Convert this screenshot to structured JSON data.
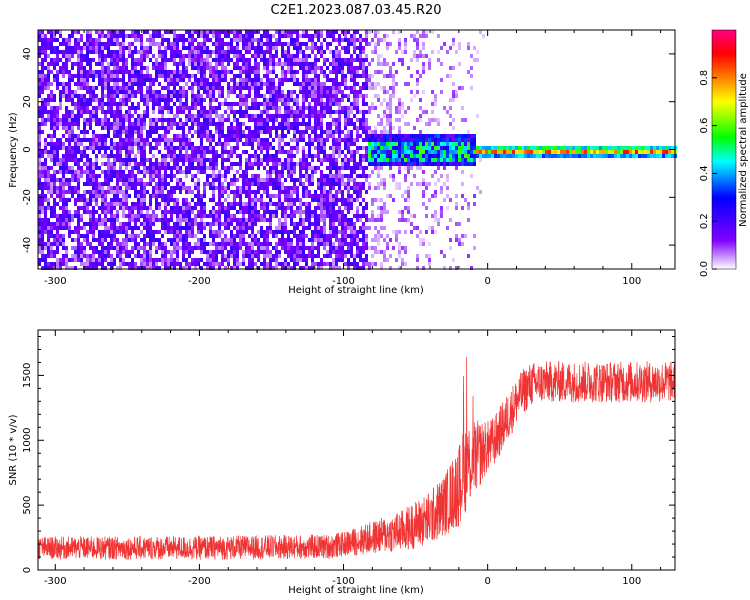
{
  "title": "C2E1.2023.087.03.45.R20",
  "chart_data": [
    {
      "type": "heatmap",
      "xlabel": "Height of straight line (km)",
      "ylabel": "Frequency (Hz)",
      "xlim": [
        -312,
        130
      ],
      "ylim": [
        -50,
        50
      ],
      "x_ticks": [
        -300,
        -200,
        -100,
        0,
        100
      ],
      "y_ticks": [
        -40,
        -20,
        0,
        20,
        40
      ],
      "colorbar": {
        "label": "Normalized spectral amplitude",
        "range": [
          0.0,
          1.0
        ],
        "ticks": [
          0.0,
          0.2,
          0.4,
          0.6,
          0.8
        ],
        "colors": [
          "#ffffff",
          "#8000ff",
          "#0000ff",
          "#00ffff",
          "#00ff00",
          "#ffff00",
          "#ff8000",
          "#ff0000",
          "#ff0080"
        ]
      },
      "regions": [
        {
          "x_range": [
            -312,
            -85
          ],
          "freq_range": [
            -50,
            50
          ],
          "amplitude": [
            0.05,
            0.2
          ],
          "description_key": "noise"
        },
        {
          "x_range": [
            -85,
            -10
          ],
          "freq_range": [
            -50,
            50
          ],
          "amplitude": [
            0.0,
            0.1
          ]
        },
        {
          "x_range": [
            -85,
            -10
          ],
          "freq_range": [
            -6,
            8
          ],
          "amplitude": [
            0.2,
            0.6
          ]
        },
        {
          "x_range": [
            -10,
            130
          ],
          "freq_range": [
            -3,
            3
          ],
          "amplitude": [
            0.4,
            0.9
          ]
        }
      ]
    },
    {
      "type": "line",
      "xlabel": "Height of straight line (km)",
      "ylabel": "SNR (10 * v/v)",
      "xlim": [
        -312,
        130
      ],
      "ylim": [
        0,
        1850
      ],
      "x_ticks": [
        -300,
        -200,
        -100,
        0,
        100
      ],
      "y_ticks": [
        0,
        500,
        1000,
        1500
      ],
      "color": "#f03333",
      "profile": {
        "x": [
          -312,
          -200,
          -110,
          -100,
          -80,
          -60,
          -40,
          -30,
          -20,
          -15,
          -10,
          -5,
          0,
          5,
          10,
          15,
          20,
          25,
          30,
          40,
          60,
          80,
          100,
          130
        ],
        "y": [
          170,
          170,
          180,
          200,
          250,
          300,
          400,
          500,
          650,
          800,
          850,
          900,
          950,
          1000,
          1100,
          1200,
          1300,
          1380,
          1430,
          1450,
          1450,
          1450,
          1450,
          1450
        ]
      },
      "noise_band": {
        "x": [
          -312,
          -100,
          -60,
          -30,
          -15,
          0,
          20,
          40,
          130
        ],
        "spread": [
          110,
          120,
          200,
          300,
          450,
          250,
          230,
          200,
          200
        ]
      }
    }
  ]
}
